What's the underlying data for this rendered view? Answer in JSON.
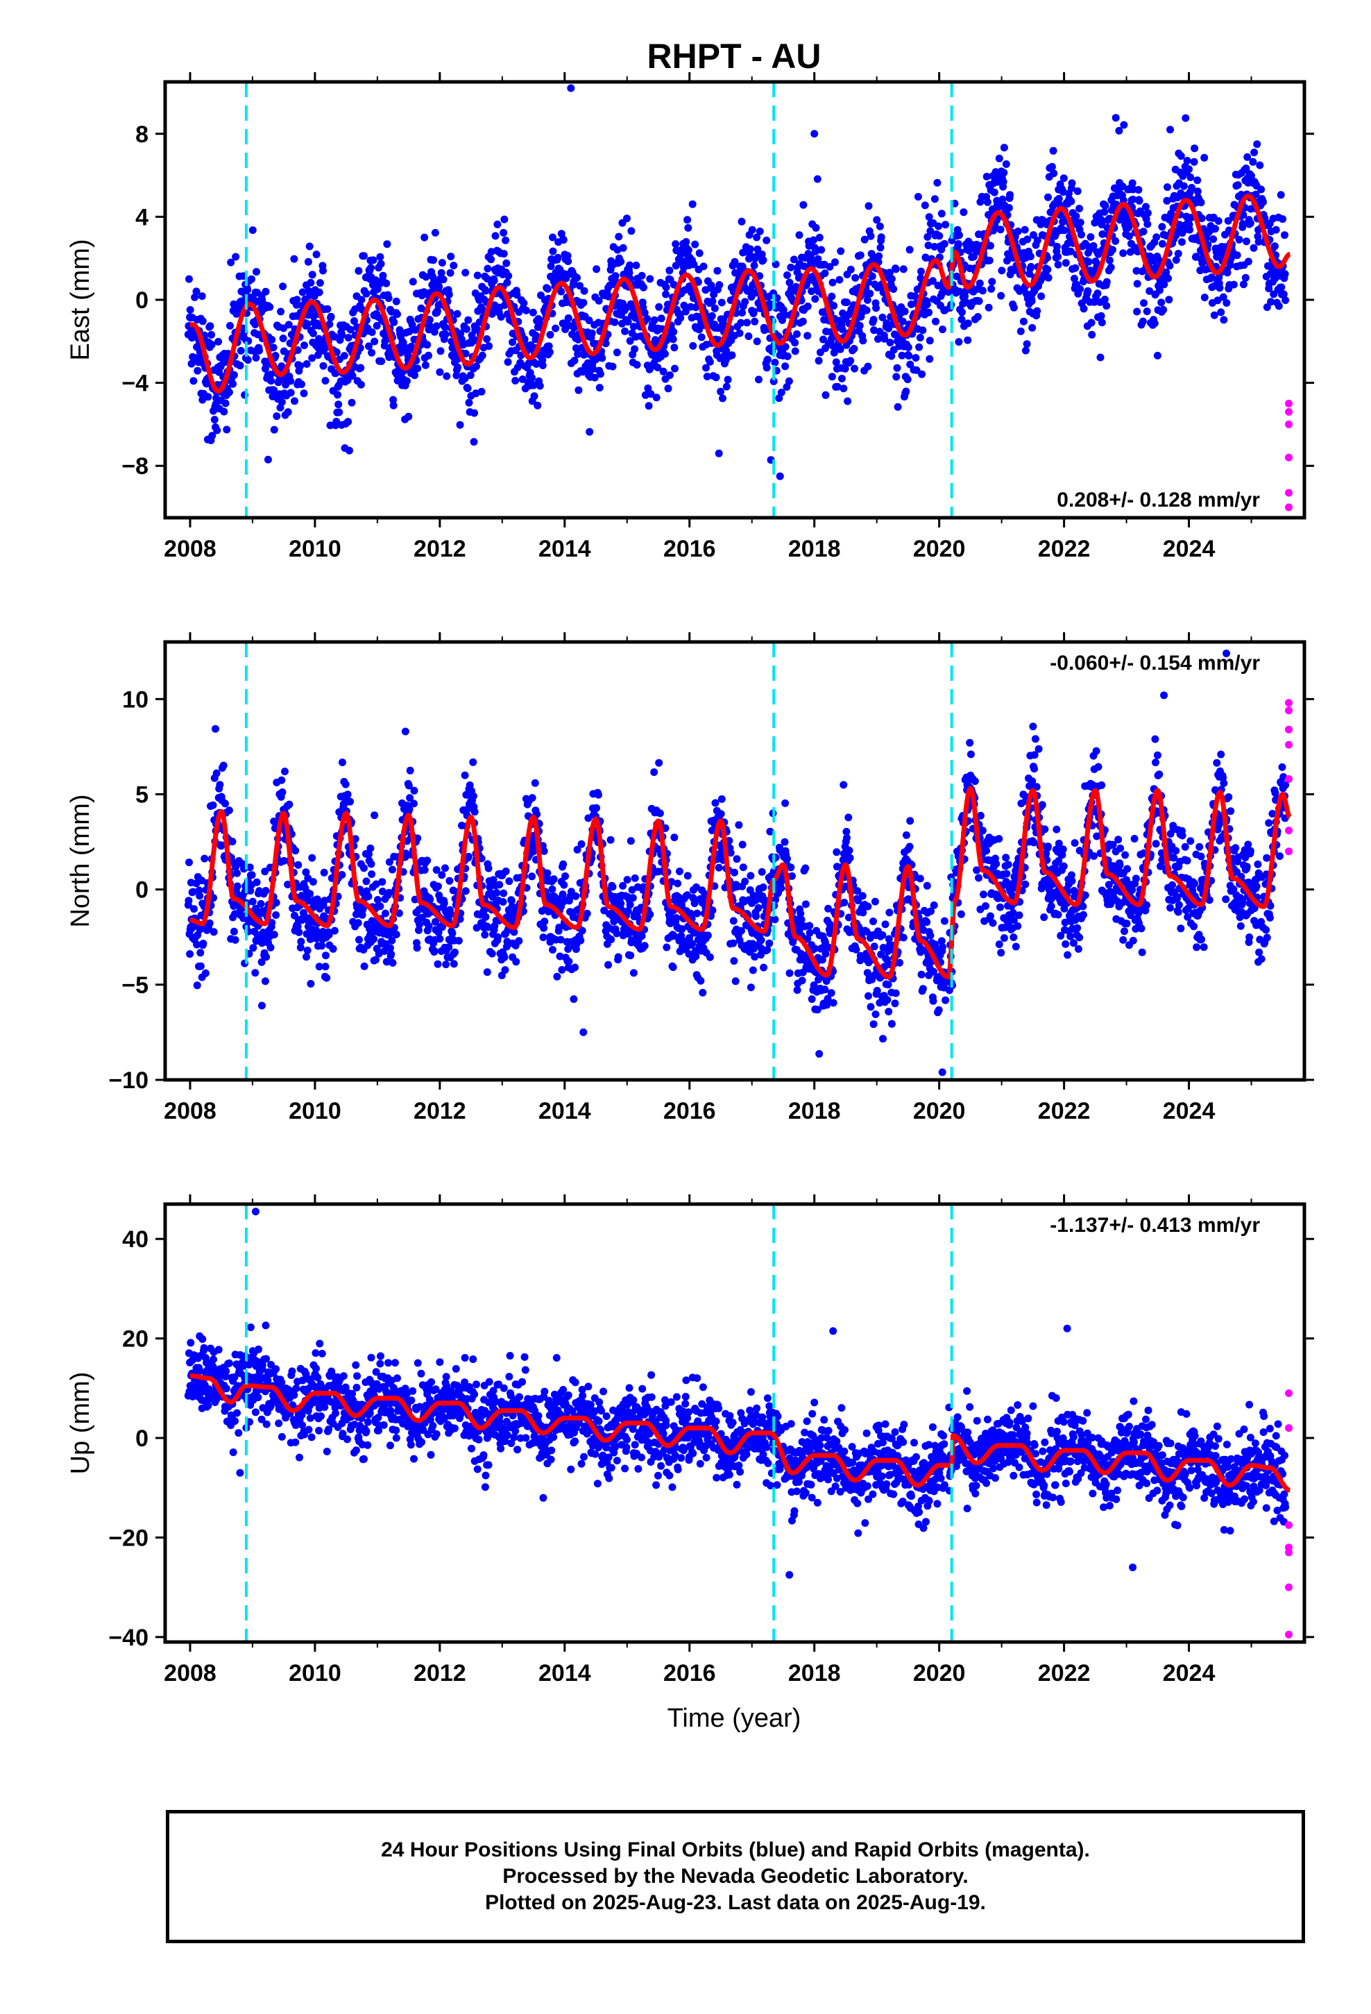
{
  "title": "RHPT - AU",
  "xlabel": "Time (year)",
  "colors": {
    "final_orbits": "#0000ff",
    "rapid_orbits": "#ff00ff",
    "model": "#ff0000",
    "offsets": "#00e5ee"
  },
  "chart_data": [
    {
      "type": "scatter",
      "component": "East",
      "ylabel": "East (mm)",
      "ylim": [
        -10.5,
        10.5
      ],
      "yticks": [
        -8,
        -4,
        0,
        4,
        8
      ],
      "xlim": [
        2007.6,
        2025.85
      ],
      "xticks": [
        2008,
        2010,
        2012,
        2014,
        2016,
        2018,
        2020,
        2022,
        2024
      ],
      "offset_times": [
        2008.9,
        2017.35,
        2020.2
      ],
      "rate_label": "0.208+/- 0.128 mm/yr",
      "rate_position": "bottom-right",
      "model_peaks": [
        {
          "t": 2008.05,
          "v": -1.2
        },
        {
          "t": 2008.45,
          "v": -4.4
        },
        {
          "t": 2008.95,
          "v": -0.2
        },
        {
          "t": 2009.45,
          "v": -3.6
        },
        {
          "t": 2009.95,
          "v": -0.1
        },
        {
          "t": 2010.45,
          "v": -3.5
        },
        {
          "t": 2010.95,
          "v": 0.0
        },
        {
          "t": 2011.45,
          "v": -3.3
        },
        {
          "t": 2011.95,
          "v": 0.3
        },
        {
          "t": 2012.45,
          "v": -3.1
        },
        {
          "t": 2012.95,
          "v": 0.6
        },
        {
          "t": 2013.45,
          "v": -2.8
        },
        {
          "t": 2013.95,
          "v": 0.8
        },
        {
          "t": 2014.45,
          "v": -2.6
        },
        {
          "t": 2014.95,
          "v": 1.0
        },
        {
          "t": 2015.45,
          "v": -2.4
        },
        {
          "t": 2015.95,
          "v": 1.2
        },
        {
          "t": 2016.45,
          "v": -2.2
        },
        {
          "t": 2016.95,
          "v": 1.4
        },
        {
          "t": 2017.45,
          "v": -2.1
        },
        {
          "t": 2017.95,
          "v": 1.5
        },
        {
          "t": 2018.45,
          "v": -2.0
        },
        {
          "t": 2018.95,
          "v": 1.7
        },
        {
          "t": 2019.45,
          "v": -1.7
        },
        {
          "t": 2019.95,
          "v": 1.9
        },
        {
          "t": 2020.15,
          "v": 0.6
        },
        {
          "t": 2020.25,
          "v": 2.3
        },
        {
          "t": 2020.45,
          "v": 0.6
        },
        {
          "t": 2020.95,
          "v": 4.2
        },
        {
          "t": 2021.45,
          "v": 0.7
        },
        {
          "t": 2021.95,
          "v": 4.4
        },
        {
          "t": 2022.45,
          "v": 0.9
        },
        {
          "t": 2022.95,
          "v": 4.6
        },
        {
          "t": 2023.45,
          "v": 1.1
        },
        {
          "t": 2023.95,
          "v": 4.8
        },
        {
          "t": 2024.45,
          "v": 1.3
        },
        {
          "t": 2024.95,
          "v": 5.0
        },
        {
          "t": 2025.45,
          "v": 1.6
        },
        {
          "t": 2025.62,
          "v": 2.2
        }
      ],
      "noise_sd": 1.5,
      "rapid_points": [
        -5.0,
        -5.4,
        -6.0,
        -7.6,
        -9.3,
        -10.0
      ],
      "outliers": [
        [
          2014.1,
          10.2
        ],
        [
          2018.0,
          8.0
        ],
        [
          2017.45,
          -8.5
        ],
        [
          2023.7,
          8.2
        ],
        [
          2009.25,
          -7.7
        ]
      ]
    },
    {
      "type": "scatter",
      "component": "North",
      "ylabel": "North (mm)",
      "ylim": [
        -10.0,
        13.0
      ],
      "yticks": [
        -10,
        -5,
        0,
        5,
        10
      ],
      "xlim": [
        2007.6,
        2025.85
      ],
      "xticks": [
        2008,
        2010,
        2012,
        2014,
        2016,
        2018,
        2020,
        2022,
        2024
      ],
      "offset_times": [
        2008.9,
        2017.35,
        2020.2
      ],
      "rate_label": "-0.060+/- 0.154 mm/yr",
      "rate_position": "top-right",
      "model_peaks": [
        {
          "t": 2008.0,
          "v": -1.6
        },
        {
          "t": 2008.2,
          "v": -1.8
        },
        {
          "t": 2008.5,
          "v": 4.1
        },
        {
          "t": 2008.7,
          "v": -0.5
        },
        {
          "t": 2009.2,
          "v": -1.8
        },
        {
          "t": 2009.5,
          "v": 4.0
        },
        {
          "t": 2009.7,
          "v": -0.6
        },
        {
          "t": 2010.2,
          "v": -1.9
        },
        {
          "t": 2010.5,
          "v": 4.0
        },
        {
          "t": 2010.7,
          "v": -0.6
        },
        {
          "t": 2011.2,
          "v": -1.9
        },
        {
          "t": 2011.5,
          "v": 3.9
        },
        {
          "t": 2011.7,
          "v": -0.7
        },
        {
          "t": 2012.2,
          "v": -1.9
        },
        {
          "t": 2012.5,
          "v": 3.8
        },
        {
          "t": 2012.7,
          "v": -0.8
        },
        {
          "t": 2013.2,
          "v": -2.0
        },
        {
          "t": 2013.5,
          "v": 3.8
        },
        {
          "t": 2013.7,
          "v": -0.8
        },
        {
          "t": 2014.2,
          "v": -2.0
        },
        {
          "t": 2014.5,
          "v": 3.7
        },
        {
          "t": 2014.7,
          "v": -0.9
        },
        {
          "t": 2015.2,
          "v": -2.1
        },
        {
          "t": 2015.5,
          "v": 3.6
        },
        {
          "t": 2015.7,
          "v": -0.9
        },
        {
          "t": 2016.2,
          "v": -2.1
        },
        {
          "t": 2016.5,
          "v": 3.6
        },
        {
          "t": 2016.7,
          "v": -1.0
        },
        {
          "t": 2017.2,
          "v": -2.2
        },
        {
          "t": 2017.35,
          "v": 0.5
        },
        {
          "t": 2017.5,
          "v": 1.3
        },
        {
          "t": 2017.7,
          "v": -2.5
        },
        {
          "t": 2018.2,
          "v": -4.5
        },
        {
          "t": 2018.5,
          "v": 1.3
        },
        {
          "t": 2018.7,
          "v": -2.6
        },
        {
          "t": 2019.2,
          "v": -4.6
        },
        {
          "t": 2019.5,
          "v": 1.2
        },
        {
          "t": 2019.7,
          "v": -2.7
        },
        {
          "t": 2020.15,
          "v": -4.6
        },
        {
          "t": 2020.25,
          "v": -0.6
        },
        {
          "t": 2020.5,
          "v": 5.3
        },
        {
          "t": 2020.7,
          "v": 1.0
        },
        {
          "t": 2021.2,
          "v": -0.7
        },
        {
          "t": 2021.5,
          "v": 5.2
        },
        {
          "t": 2021.7,
          "v": 0.9
        },
        {
          "t": 2022.2,
          "v": -0.8
        },
        {
          "t": 2022.5,
          "v": 5.2
        },
        {
          "t": 2022.7,
          "v": 0.8
        },
        {
          "t": 2023.2,
          "v": -0.8
        },
        {
          "t": 2023.5,
          "v": 5.2
        },
        {
          "t": 2023.7,
          "v": 0.7
        },
        {
          "t": 2024.2,
          "v": -0.8
        },
        {
          "t": 2024.5,
          "v": 5.1
        },
        {
          "t": 2024.7,
          "v": 0.6
        },
        {
          "t": 2025.2,
          "v": -0.9
        },
        {
          "t": 2025.5,
          "v": 5.0
        },
        {
          "t": 2025.62,
          "v": 3.8
        }
      ],
      "noise_sd": 1.4,
      "rapid_points": [
        9.8,
        9.4,
        8.4,
        7.6,
        5.8,
        3.1,
        2.0
      ],
      "outliers": [
        [
          2024.6,
          12.4
        ],
        [
          2011.45,
          8.3
        ],
        [
          2009.15,
          -6.1
        ],
        [
          2014.3,
          -7.5
        ],
        [
          2020.05,
          -9.6
        ],
        [
          2023.6,
          10.2
        ]
      ]
    },
    {
      "type": "scatter",
      "component": "Up",
      "ylabel": "Up (mm)",
      "ylim": [
        -41,
        47
      ],
      "yticks": [
        -40,
        -20,
        0,
        20,
        40
      ],
      "xlim": [
        2007.6,
        2025.85
      ],
      "xticks": [
        2008,
        2010,
        2012,
        2014,
        2016,
        2018,
        2020,
        2022,
        2024
      ],
      "offset_times": [
        2008.9,
        2017.35,
        2020.2
      ],
      "rate_label": "-1.137+/- 0.413 mm/yr",
      "rate_position": "top-right",
      "model_peaks": [
        {
          "t": 2008.0,
          "v": 12.5
        },
        {
          "t": 2008.3,
          "v": 12.0
        },
        {
          "t": 2008.65,
          "v": 7.2
        },
        {
          "t": 2008.9,
          "v": 10.5
        },
        {
          "t": 2009.3,
          "v": 10.2
        },
        {
          "t": 2009.65,
          "v": 5.5
        },
        {
          "t": 2010.0,
          "v": 9.0
        },
        {
          "t": 2010.3,
          "v": 9.0
        },
        {
          "t": 2010.65,
          "v": 4.5
        },
        {
          "t": 2011.0,
          "v": 8.0
        },
        {
          "t": 2011.3,
          "v": 8.0
        },
        {
          "t": 2011.65,
          "v": 3.5
        },
        {
          "t": 2012.0,
          "v": 7.0
        },
        {
          "t": 2012.3,
          "v": 7.0
        },
        {
          "t": 2012.65,
          "v": 2.0
        },
        {
          "t": 2013.0,
          "v": 5.5
        },
        {
          "t": 2013.3,
          "v": 5.5
        },
        {
          "t": 2013.65,
          "v": 1.0
        },
        {
          "t": 2014.0,
          "v": 4.0
        },
        {
          "t": 2014.3,
          "v": 4.0
        },
        {
          "t": 2014.65,
          "v": -0.5
        },
        {
          "t": 2015.0,
          "v": 3.0
        },
        {
          "t": 2015.3,
          "v": 3.0
        },
        {
          "t": 2015.65,
          "v": -1.5
        },
        {
          "t": 2016.0,
          "v": 2.0
        },
        {
          "t": 2016.3,
          "v": 2.0
        },
        {
          "t": 2016.65,
          "v": -3.0
        },
        {
          "t": 2017.0,
          "v": 1.0
        },
        {
          "t": 2017.3,
          "v": 1.0
        },
        {
          "t": 2017.65,
          "v": -7.0
        },
        {
          "t": 2018.0,
          "v": -3.5
        },
        {
          "t": 2018.3,
          "v": -3.5
        },
        {
          "t": 2018.65,
          "v": -8.5
        },
        {
          "t": 2019.0,
          "v": -4.5
        },
        {
          "t": 2019.3,
          "v": -4.5
        },
        {
          "t": 2019.65,
          "v": -9.5
        },
        {
          "t": 2020.0,
          "v": -5.5
        },
        {
          "t": 2020.2,
          "v": -5.5
        },
        {
          "t": 2020.22,
          "v": 0.5
        },
        {
          "t": 2020.6,
          "v": -5.0
        },
        {
          "t": 2020.95,
          "v": -1.5
        },
        {
          "t": 2021.3,
          "v": -1.5
        },
        {
          "t": 2021.65,
          "v": -6.5
        },
        {
          "t": 2022.0,
          "v": -2.5
        },
        {
          "t": 2022.3,
          "v": -2.5
        },
        {
          "t": 2022.65,
          "v": -7.0
        },
        {
          "t": 2023.0,
          "v": -3.0
        },
        {
          "t": 2023.3,
          "v": -3.0
        },
        {
          "t": 2023.65,
          "v": -8.5
        },
        {
          "t": 2024.0,
          "v": -4.5
        },
        {
          "t": 2024.3,
          "v": -4.5
        },
        {
          "t": 2024.65,
          "v": -9.5
        },
        {
          "t": 2025.0,
          "v": -5.5
        },
        {
          "t": 2025.3,
          "v": -6.0
        },
        {
          "t": 2025.62,
          "v": -10.5
        }
      ],
      "noise_sd": 4.0,
      "rapid_points": [
        9.0,
        2.0,
        -17.5,
        -22.0,
        -23.0,
        -30.0,
        -39.5
      ],
      "outliers": [
        [
          2009.05,
          45.5
        ],
        [
          2018.3,
          21.5
        ],
        [
          2008.8,
          -7.0
        ],
        [
          2017.6,
          -27.5
        ],
        [
          2023.1,
          -26.0
        ],
        [
          2022.05,
          22.0
        ]
      ]
    }
  ],
  "footer": {
    "line1": "24 Hour Positions Using Final Orbits (blue) and Rapid Orbits (magenta).",
    "line2": "Processed by the Nevada Geodetic Laboratory.",
    "line3": "Plotted on 2025-Aug-23. Last data on 2025-Aug-19."
  }
}
